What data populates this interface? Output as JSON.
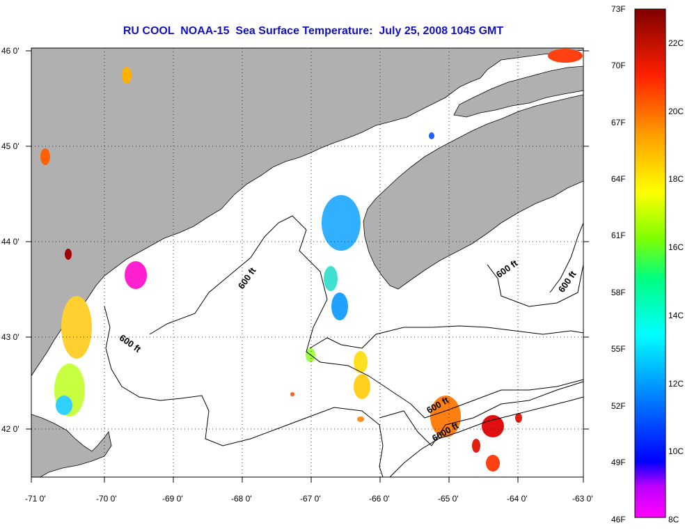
{
  "title": "RU COOL  NOAA-15  Sea Surface Temperature:  July 25, 2008 1045 GMT",
  "map": {
    "lon_range": [
      -71,
      -63
    ],
    "lat_range": [
      41.5,
      46
    ],
    "lon_ticks": [
      "-71 0'",
      "-70 0'",
      "-69 0'",
      "-68 0'",
      "-67 0'",
      "-66 0'",
      "-65 0'",
      "-64 0'",
      "-63 0'"
    ],
    "lat_ticks": [
      "46 0'",
      "45 0'",
      "44 0'",
      "43 0'",
      "42 0'"
    ],
    "land_color": "#b0b0b0",
    "water_color": "#ffffff",
    "grid": "dotted",
    "contour_labels": [
      "600 ft",
      "600 ft",
      "600 ft",
      "600 ft",
      "6000 ft"
    ]
  },
  "colorbar": {
    "fahrenheit": [
      "73F",
      "70F",
      "67F",
      "64F",
      "61F",
      "58F",
      "55F",
      "52F",
      "49F",
      "46F"
    ],
    "celsius": [
      "22C",
      "20C",
      "18C",
      "16C",
      "14C",
      "12C",
      "10C",
      "8C"
    ],
    "colors": [
      "#ff00ff",
      "#8000ff",
      "#0000ff",
      "#0080ff",
      "#00ffff",
      "#00ff80",
      "#80ff00",
      "#ffff00",
      "#ffc000",
      "#ff8000",
      "#ff2000",
      "#c00000",
      "#800000"
    ]
  }
}
